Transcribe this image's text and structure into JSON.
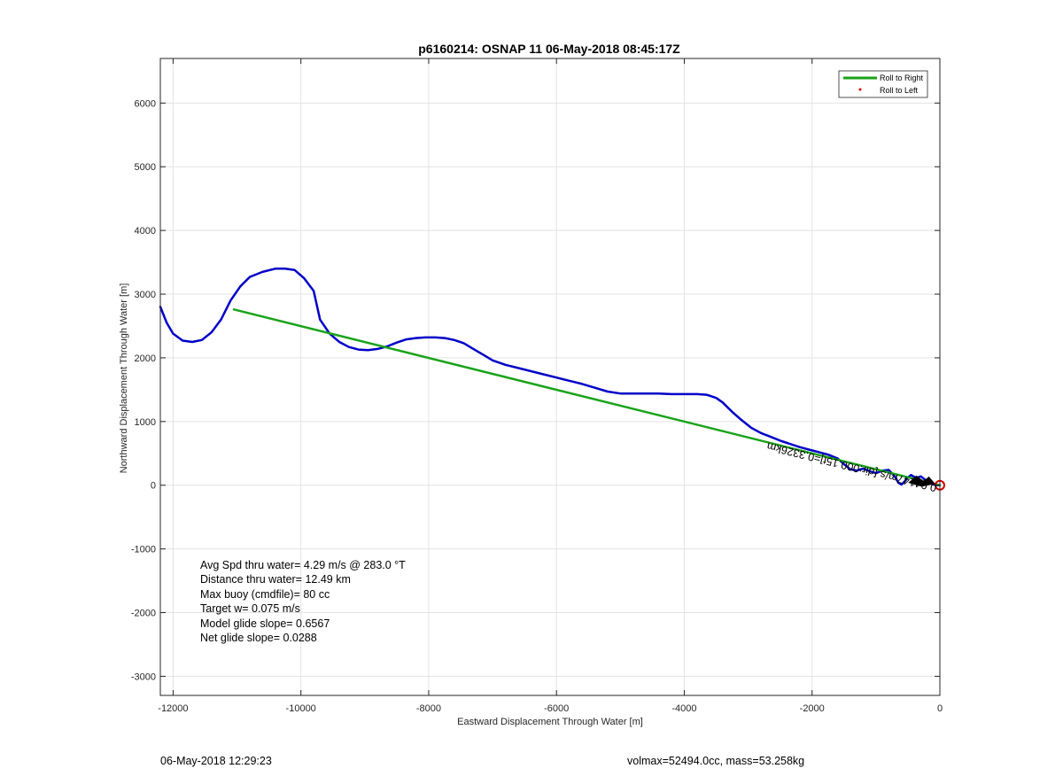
{
  "chart_data": {
    "type": "line",
    "title": "p6160214: OSNAP 11 06-May-2018 08:45:17Z",
    "xlabel": "Eastward Displacement Through Water [m]",
    "ylabel": "Northward Displacement Through Water [m]",
    "xlim": [
      -12200,
      0
    ],
    "ylim": [
      -3300,
      6700
    ],
    "xticks": [
      -12000,
      -10000,
      -8000,
      -6000,
      -4000,
      -2000,
      0
    ],
    "yticks": [
      -3000,
      -2000,
      -1000,
      0,
      1000,
      2000,
      3000,
      4000,
      5000,
      6000
    ],
    "grid": true,
    "legend": {
      "location": "top-right",
      "entries": [
        {
          "label": "Roll to Right",
          "color": "#1aa31a",
          "marker": "line"
        },
        {
          "label": "Roll to Left",
          "color": "#e00000",
          "marker": "dot"
        }
      ]
    },
    "series": [
      {
        "color": "#0000c8",
        "x": [
          -12200,
          -12100,
          -12000,
          -11850,
          -11700,
          -11550,
          -11400,
          -11250,
          -11100,
          -10950,
          -10800,
          -10600,
          -10400,
          -10250,
          -10100,
          -9950,
          -9800,
          -9700,
          -9550,
          -9400,
          -9250,
          -9100,
          -8950,
          -8800,
          -8650,
          -8500,
          -8350,
          -8200,
          -8050,
          -7900,
          -7750,
          -7600,
          -7450,
          -7300,
          -7150,
          -7000,
          -6800,
          -6600,
          -6400,
          -6200,
          -6000,
          -5800,
          -5600,
          -5400,
          -5200,
          -5000,
          -4800,
          -4600,
          -4400,
          -4200,
          -4000,
          -3800,
          -3650,
          -3500,
          -3400,
          -3250,
          -3100,
          -2950,
          -2800,
          -2650,
          -2500,
          -2350,
          -2200,
          -2050,
          -1900,
          -1750,
          -1600,
          -1500,
          -1400,
          -1300,
          -1200,
          -1100,
          -1000,
          -900,
          -800,
          -700,
          -650,
          -600,
          -550,
          -500,
          -450,
          -400,
          -350,
          -300,
          -250,
          -200,
          -150,
          -100,
          -50,
          0
        ],
        "y": [
          2800,
          2550,
          2380,
          2270,
          2250,
          2280,
          2400,
          2600,
          2900,
          3120,
          3270,
          3350,
          3400,
          3400,
          3380,
          3250,
          3050,
          2600,
          2380,
          2250,
          2170,
          2130,
          2120,
          2140,
          2180,
          2240,
          2290,
          2310,
          2320,
          2320,
          2310,
          2280,
          2230,
          2140,
          2050,
          1960,
          1890,
          1840,
          1790,
          1740,
          1690,
          1640,
          1590,
          1530,
          1470,
          1440,
          1440,
          1440,
          1440,
          1430,
          1430,
          1430,
          1420,
          1370,
          1300,
          1150,
          1020,
          900,
          820,
          760,
          700,
          650,
          600,
          560,
          520,
          480,
          420,
          330,
          250,
          230,
          260,
          220,
          190,
          230,
          240,
          130,
          40,
          10,
          60,
          120,
          160,
          130,
          120,
          140,
          100,
          60,
          30,
          10,
          0,
          0
        ]
      },
      {
        "name": "Roll to Right",
        "color": "#1aa31a",
        "x": [
          -11050,
          0
        ],
        "y": [
          2760,
          0
        ]
      }
    ],
    "markers": [
      {
        "label": "end-circle",
        "x": 0,
        "y": 0,
        "color": "#d00000"
      }
    ],
    "annotations": [
      "Avg Spd thru water=  4.29 m/s @ 283.0 °T",
      "Distance thru water= 12.49 km",
      "Max buoy (cmdfile)= 80 cc",
      "Target w= 0.075 m/s",
      "Model glide slope= 0.6567",
      "Net glide slope= 0.0288"
    ],
    "rotated_label": "0.04147m/s [dir:000.15t]=0.3326km"
  },
  "footer": {
    "left": "06-May-2018 12:29:23",
    "right": "volmax=52494.0cc, mass=53.258kg"
  }
}
